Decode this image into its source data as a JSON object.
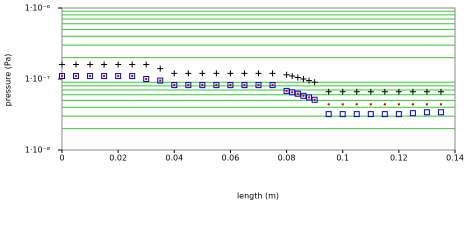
{
  "chart_data": {
    "type": "scatter",
    "x_label": "length (m)",
    "y_label": "pressure (Pa)",
    "xlim": [
      0,
      0.14
    ],
    "xticks": [
      0,
      0.02,
      0.04,
      0.06,
      0.08,
      0.1,
      0.12,
      0.14
    ],
    "ylim": [
      1e-08,
      1e-06
    ],
    "log_y": true,
    "grid": true,
    "grid_color": "#33cc33",
    "yticks": [
      {
        "value": 1e-08,
        "label": "1·10⁻⁸"
      },
      {
        "value": 1e-07,
        "label": "1·10⁻⁷"
      },
      {
        "value": 1e-06,
        "label": "1·10⁻⁶"
      }
    ],
    "minor_yticks": [
      2e-08,
      3e-08,
      4e-08,
      5e-08,
      6e-08,
      7e-08,
      8e-08,
      9e-08,
      2e-07,
      3e-07,
      4e-07,
      5e-07,
      6e-07,
      7e-07,
      8e-07,
      9e-07
    ],
    "x": [
      0,
      0.005,
      0.01,
      0.015,
      0.02,
      0.025,
      0.03,
      0.035,
      0.04,
      0.045,
      0.05,
      0.055,
      0.06,
      0.065,
      0.07,
      0.075,
      0.08,
      0.082,
      0.084,
      0.086,
      0.088,
      0.09,
      0.095,
      0.1,
      0.105,
      0.11,
      0.115,
      0.12,
      0.125,
      0.13,
      0.135
    ],
    "series": [
      {
        "marker": "plus",
        "color": "#000000",
        "values": [
          1.6e-07,
          1.6e-07,
          1.6e-07,
          1.6e-07,
          1.6e-07,
          1.6e-07,
          1.6e-07,
          1.4e-07,
          1.2e-07,
          1.2e-07,
          1.2e-07,
          1.2e-07,
          1.2e-07,
          1.2e-07,
          1.2e-07,
          1.2e-07,
          1.15e-07,
          1.1e-07,
          1.05e-07,
          1e-07,
          9.5e-08,
          9e-08,
          6.6e-08,
          6.6e-08,
          6.6e-08,
          6.6e-08,
          6.6e-08,
          6.6e-08,
          6.6e-08,
          6.6e-08,
          6.6e-08
        ]
      },
      {
        "marker": "dot",
        "color": "#dd0000",
        "values": [
          1.1e-07,
          1.1e-07,
          1.1e-07,
          1.1e-07,
          1.1e-07,
          1.1e-07,
          1e-07,
          9.5e-08,
          8.2e-08,
          8.2e-08,
          8.2e-08,
          8.2e-08,
          8.2e-08,
          8.2e-08,
          8.2e-08,
          8.2e-08,
          6.8e-08,
          6.5e-08,
          6.2e-08,
          5.8e-08,
          5.5e-08,
          5.1e-08,
          4.4e-08,
          4.4e-08,
          4.4e-08,
          4.4e-08,
          4.4e-08,
          4.4e-08,
          4.4e-08,
          4.4e-08,
          4.4e-08
        ]
      },
      {
        "marker": "square",
        "color": "#0000cc",
        "values": [
          1.1e-07,
          1.1e-07,
          1.1e-07,
          1.1e-07,
          1.1e-07,
          1.1e-07,
          1e-07,
          9.5e-08,
          8.2e-08,
          8.2e-08,
          8.2e-08,
          8.2e-08,
          8.2e-08,
          8.2e-08,
          8.2e-08,
          8.2e-08,
          6.8e-08,
          6.5e-08,
          6.2e-08,
          5.8e-08,
          5.5e-08,
          5.1e-08,
          3.2e-08,
          3.2e-08,
          3.2e-08,
          3.2e-08,
          3.2e-08,
          3.2e-08,
          3.3e-08,
          3.4e-08,
          3.4e-08
        ]
      }
    ]
  }
}
